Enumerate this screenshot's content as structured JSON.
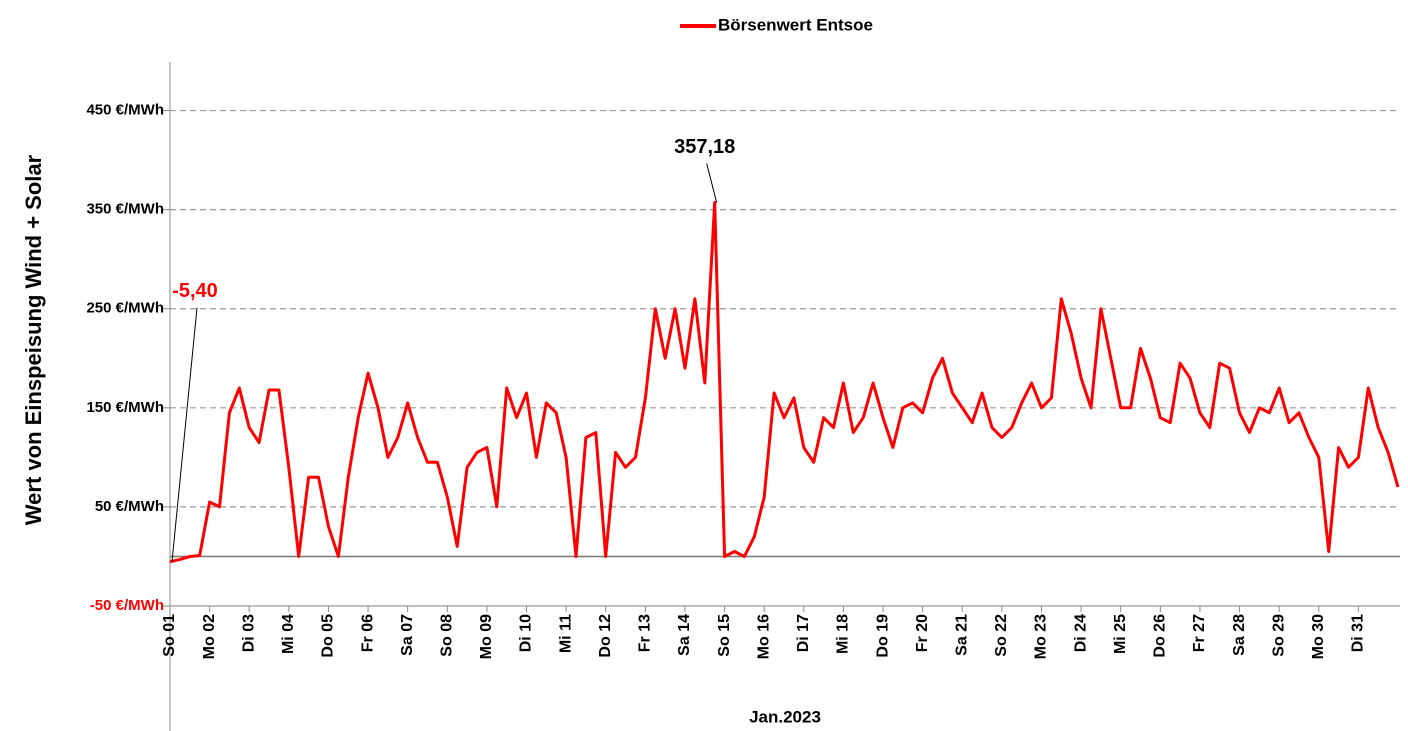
{
  "chart_data": {
    "type": "line",
    "legend": "top",
    "y_label": "Wert von Einspeisung Wind + Solar",
    "x_label": "Jan.2023",
    "categories": [
      "So 01",
      null,
      null,
      null,
      "Mo 02",
      null,
      null,
      null,
      "Di 03",
      null,
      null,
      null,
      "Mi 04",
      null,
      null,
      null,
      "Do 05",
      null,
      null,
      null,
      "Fr 06",
      null,
      null,
      null,
      "Sa 07",
      null,
      null,
      null,
      "So 08",
      null,
      null,
      null,
      "Mo 09",
      null,
      null,
      null,
      "Di 10",
      null,
      null,
      null,
      "Mi 11",
      null,
      null,
      null,
      "Do 12",
      null,
      null,
      null,
      "Fr 13",
      null,
      null,
      null,
      "Sa 14",
      null,
      null,
      null,
      "So 15",
      null,
      null,
      null,
      "Mo 16",
      null,
      null,
      null,
      "Di 17",
      null,
      null,
      null,
      "Mi 18",
      null,
      null,
      null,
      "Do 19",
      null,
      null,
      null,
      "Fr 20",
      null,
      null,
      null,
      "Sa 21",
      null,
      null,
      null,
      "So 22",
      null,
      null,
      null,
      "Mo 23",
      null,
      null,
      null,
      "Di 24",
      null,
      null,
      null,
      "Mi 25",
      null,
      null,
      null,
      "Do 26",
      null,
      null,
      null,
      "Fr 27",
      null,
      null,
      null,
      "Sa 28",
      null,
      null,
      null,
      "So 29",
      null,
      null,
      null,
      "Mo 30",
      null,
      null,
      null,
      "Di 31",
      null,
      null,
      null,
      null
    ],
    "series": [
      {
        "name": "Börsenwert Entsoe",
        "color": "#ff0000",
        "values": [
          -5.4,
          -3,
          0,
          1,
          55,
          50,
          145,
          170,
          130,
          115,
          168,
          168,
          90,
          0,
          80,
          80,
          30,
          0,
          80,
          140,
          185,
          150,
          100,
          120,
          155,
          120,
          95,
          95,
          60,
          10,
          90,
          105,
          110,
          50,
          170,
          140,
          165,
          100,
          155,
          145,
          100,
          0,
          120,
          125,
          0,
          105,
          90,
          100,
          160,
          250,
          200,
          250,
          190,
          260,
          175,
          357.18,
          0,
          5,
          0,
          20,
          60,
          165,
          140,
          160,
          110,
          95,
          140,
          130,
          175,
          125,
          140,
          175,
          140,
          110,
          150,
          155,
          145,
          180,
          200,
          165,
          150,
          135,
          165,
          130,
          120,
          130,
          155,
          175,
          150,
          160,
          260,
          225,
          180,
          150,
          250,
          200,
          150,
          150,
          210,
          180,
          140,
          135,
          195,
          180,
          145,
          130,
          195,
          190,
          145,
          125,
          150,
          145,
          170,
          135,
          145,
          120,
          100,
          5,
          110,
          90,
          100,
          170,
          130,
          105,
          70
        ]
      }
    ],
    "annotations": [
      {
        "label": "-5,40",
        "value": -5.4,
        "color": "#ff0000"
      },
      {
        "label": "357,18",
        "value": 357.18,
        "color": "#000000"
      }
    ],
    "ylim": [
      -50,
      500
    ],
    "yticks": [
      {
        "value": -50,
        "label": "-50 €/MWh",
        "color": "#ff0000"
      },
      {
        "value": 50,
        "label": "50 €/MWh"
      },
      {
        "value": 150,
        "label": "150 €/MWh"
      },
      {
        "value": 250,
        "label": "250 €/MWh"
      },
      {
        "value": 350,
        "label": "350 €/MWh"
      },
      {
        "value": 450,
        "label": "450 €/MWh"
      }
    ],
    "grid": true
  }
}
